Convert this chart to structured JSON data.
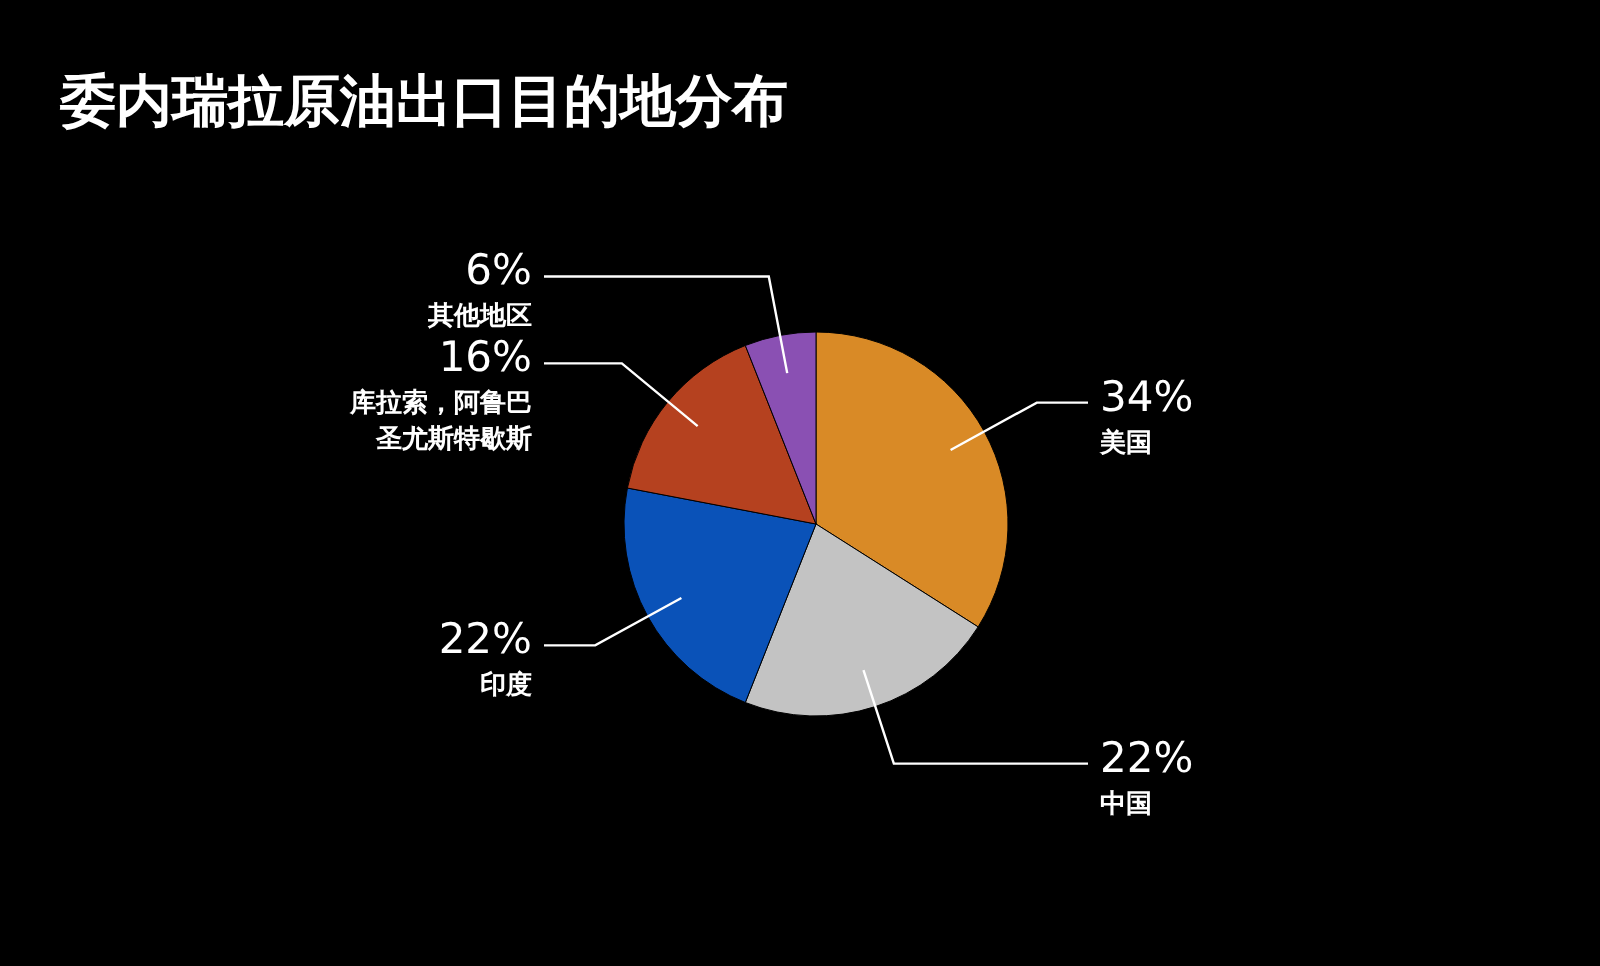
{
  "chart_data": {
    "type": "pie",
    "title": "委内瑞拉原油出口目的地分布",
    "categories": [
      "美国",
      "中国",
      "印度",
      "库拉索，阿鲁巴圣尤斯特歇斯",
      "其他地区"
    ],
    "values": [
      34,
      22,
      22,
      16,
      6
    ],
    "value_labels": [
      "34%",
      "22%",
      "22%",
      "16%",
      "6%"
    ],
    "colors": [
      "#d98a26",
      "#c3c3c3",
      "#0a52b8",
      "#b5411f",
      "#8a50b3"
    ],
    "legend": false
  }
}
